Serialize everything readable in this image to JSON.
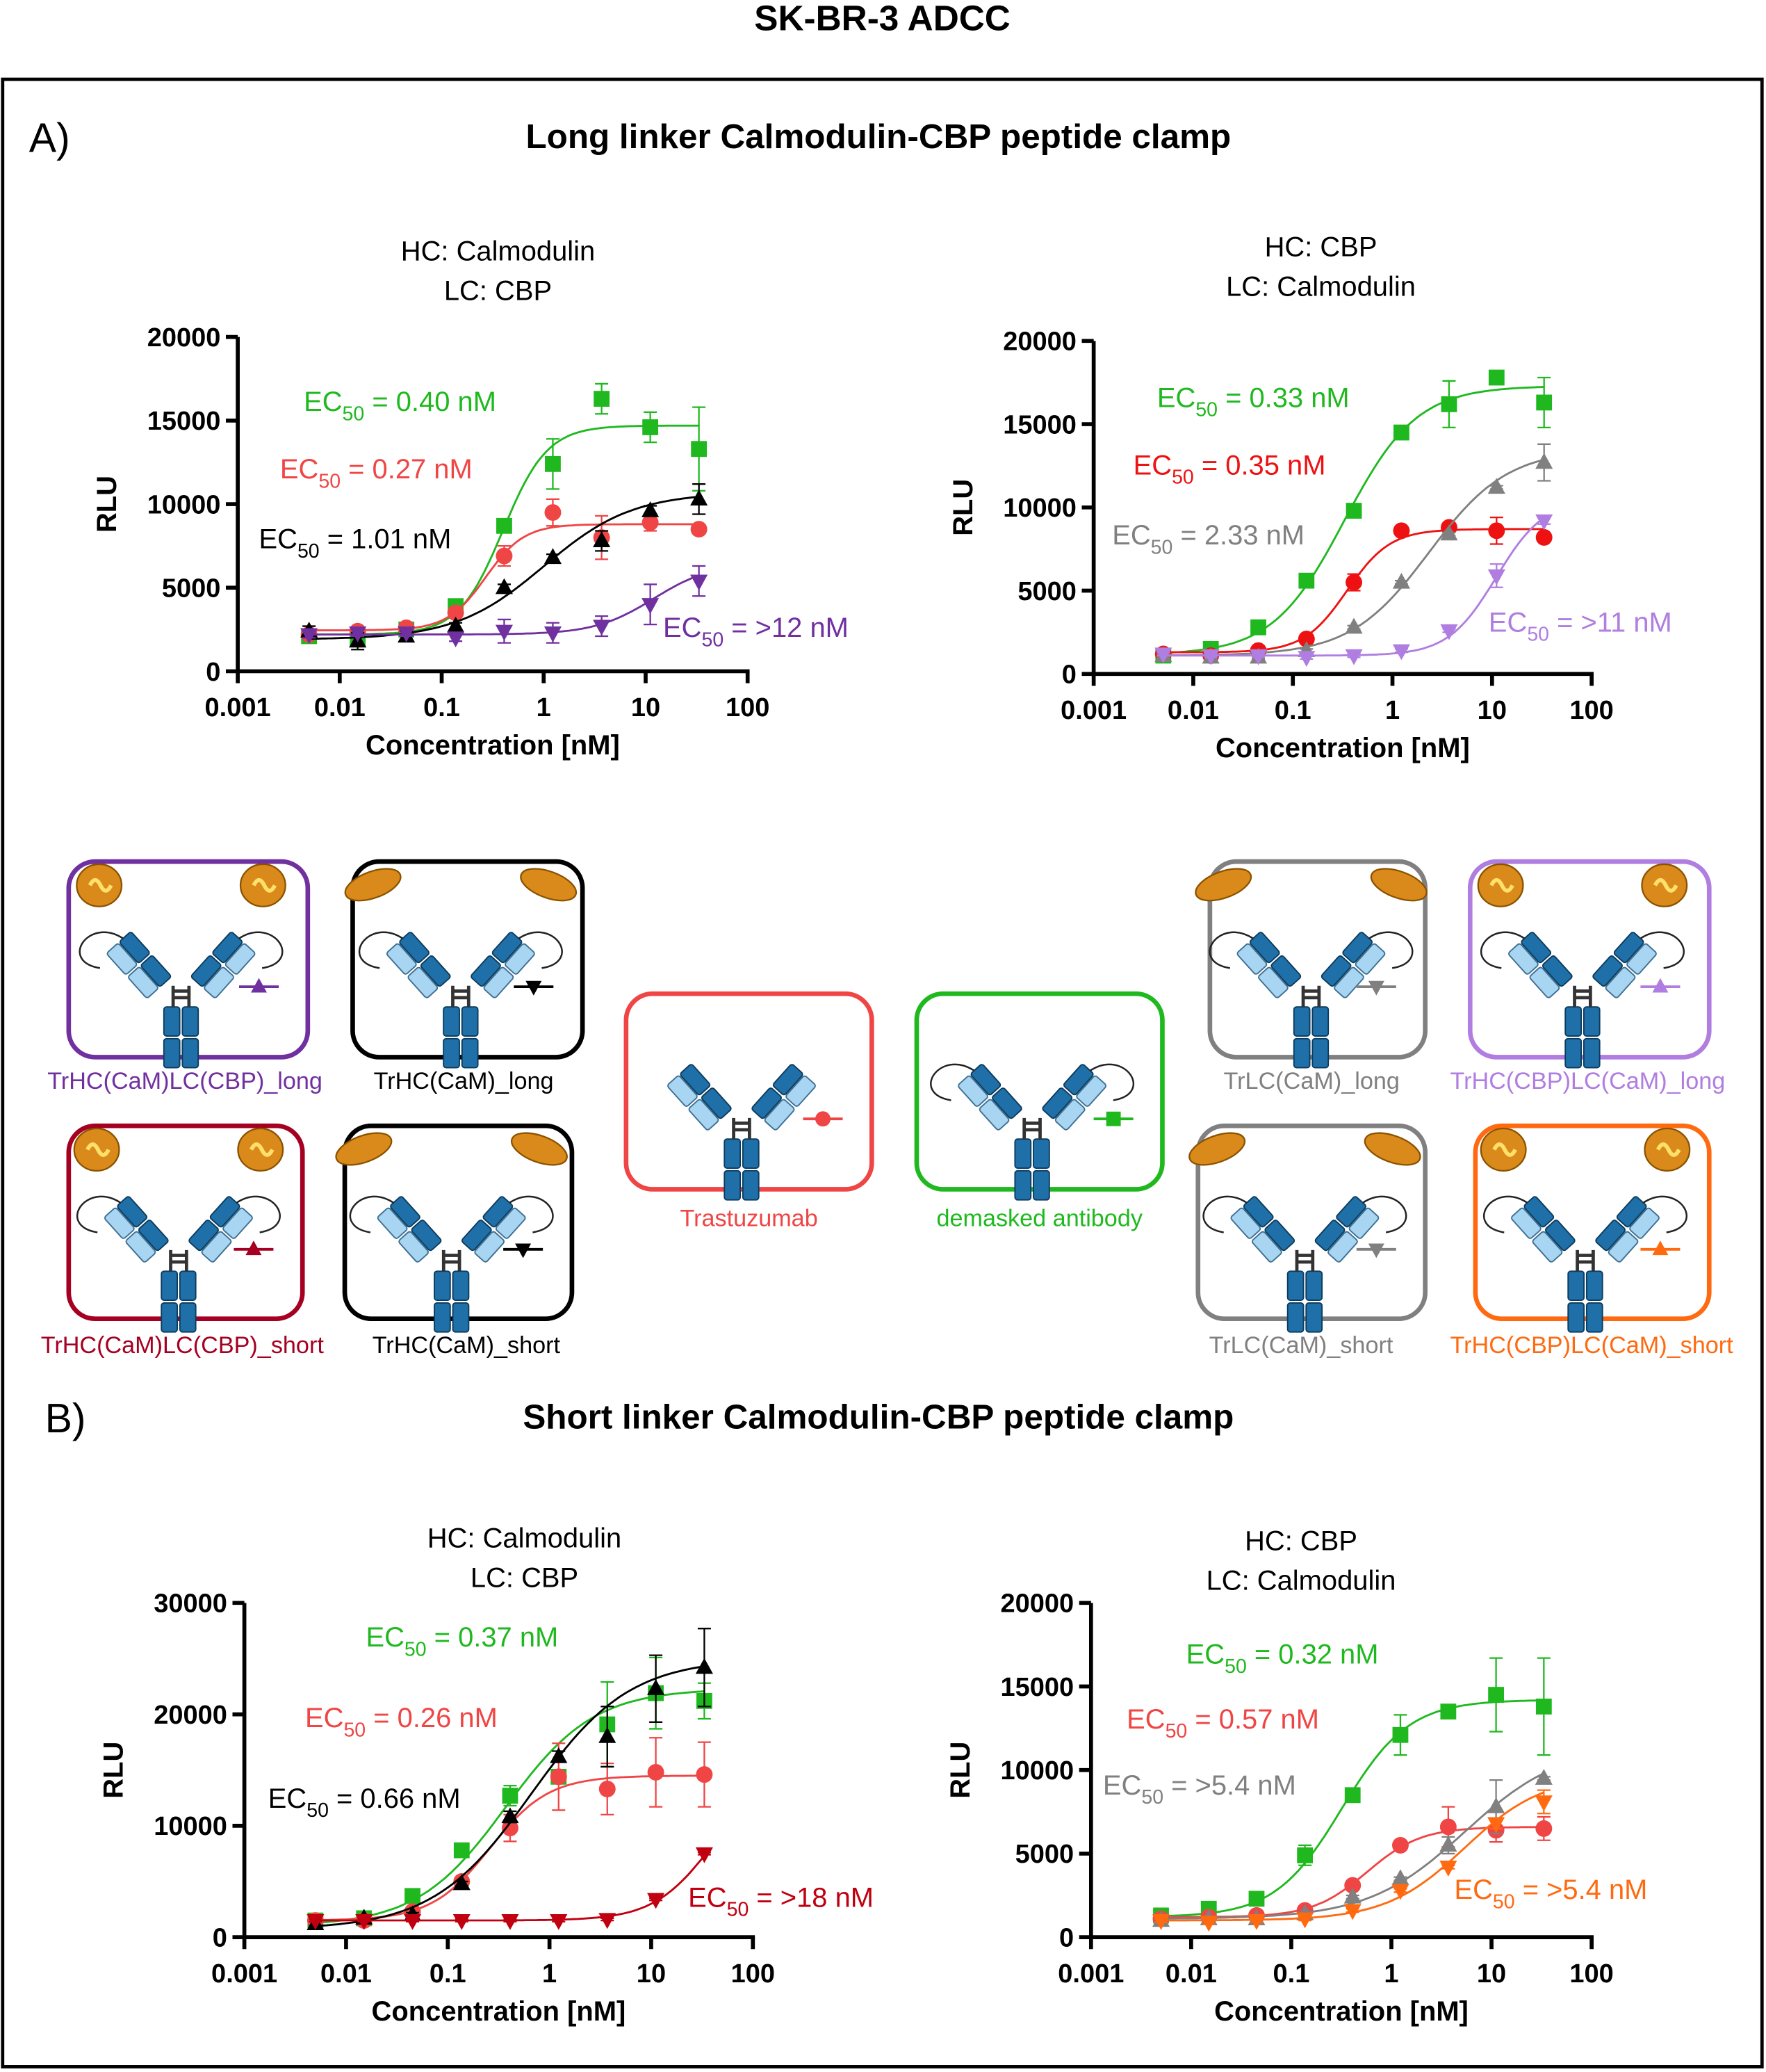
{
  "figure_title": "SK-BR-3 ADCC",
  "panels": {
    "A": {
      "label": "A)",
      "title": "Long linker Calmodulin-CBP peptide clamp"
    },
    "B": {
      "label": "B)",
      "title": "Short linker Calmodulin-CBP peptide clamp"
    }
  },
  "colors": {
    "green": "#1fb91f",
    "red": "#f04545",
    "black": "#000000",
    "purple": "#7030a0",
    "gray": "#808080",
    "lavender": "#b07de0",
    "maroon": "#a50021",
    "orange": "#ff6a10",
    "heavy_chain": "#1f70a8",
    "light_chain": "#a8d5f2",
    "calmodulin": "#d98a1a"
  },
  "legend": [
    {
      "label": "TrHC(CaM)LC(CBP)_long",
      "color": "#7030a0",
      "marker": "triangle-up",
      "mod": "ball"
    },
    {
      "label": "TrHC(CaM)_long",
      "color": "#000000",
      "marker": "triangle-down",
      "mod": "bean"
    },
    {
      "label": "TrHC(CaM)LC(CBP)_short",
      "color": "#a50021",
      "marker": "triangle-up",
      "mod": "ball"
    },
    {
      "label": "TrHC(CaM)_short",
      "color": "#000000",
      "marker": "triangle-down",
      "mod": "bean"
    },
    {
      "label": "Trastuzumab",
      "color": "#f04545",
      "marker": "circle",
      "mod": "none"
    },
    {
      "label": "demasked antibody",
      "color": "#1fb91f",
      "marker": "square",
      "mod": "linker"
    },
    {
      "label": "TrLC(CaM)_long",
      "color": "#808080",
      "marker": "triangle-down",
      "mod": "bean"
    },
    {
      "label": "TrHC(CBP)LC(CaM)_long",
      "color": "#b07de0",
      "marker": "triangle-up",
      "mod": "ball"
    },
    {
      "label": "TrLC(CaM)_short",
      "color": "#808080",
      "marker": "triangle-down",
      "mod": "bean"
    },
    {
      "label": "TrHC(CBP)LC(CaM)_short",
      "color": "#ff6a10",
      "marker": "triangle-up",
      "mod": "ball"
    }
  ],
  "chart_data": [
    {
      "type": "line",
      "panel": "A",
      "title_lines": [
        "HC: Calmodulin",
        "LC: CBP"
      ],
      "xlabel": "Concentration [nM]",
      "ylabel": "RLU",
      "xscale": "log",
      "xlim": [
        0.001,
        100
      ],
      "xticks": [
        "0.001",
        "0.01",
        "0.1",
        "1",
        "10",
        "100"
      ],
      "ylim": [
        0,
        20000
      ],
      "yticks": [
        "0",
        "5000",
        "10000",
        "15000",
        "20000"
      ],
      "x": [
        0.005,
        0.015,
        0.045,
        0.137,
        0.41,
        1.23,
        3.7,
        11.1,
        33.3
      ],
      "series": [
        {
          "name": "demasked antibody",
          "color": "#1fb91f",
          "marker": "square",
          "y": [
            2100,
            2000,
            2500,
            3900,
            8700,
            12400,
            16300,
            14600,
            13300
          ],
          "err": [
            200,
            300,
            200,
            200,
            200,
            1500,
            900,
            900,
            2500
          ],
          "fit": {
            "bottom": 2200,
            "top": 14700,
            "ec50": 0.4,
            "hill": 2.0
          },
          "ec50_label": {
            "prefix": "EC",
            "sub": "50",
            "value": " = 0.40 nM"
          }
        },
        {
          "name": "Trastuzumab",
          "color": "#f04545",
          "marker": "circle",
          "y": [
            2200,
            2400,
            2600,
            3500,
            6900,
            9500,
            8000,
            8900,
            8500
          ],
          "err": [
            200,
            200,
            200,
            200,
            600,
            800,
            1300,
            500,
            200
          ],
          "fit": {
            "bottom": 2450,
            "top": 8800,
            "ec50": 0.27,
            "hill": 2.3
          },
          "ec50_label": {
            "prefix": "EC",
            "sub": "50",
            "value": " = 0.27 nM"
          }
        },
        {
          "name": "TrHC(CaM)_long",
          "color": "#000000",
          "marker": "triangle-up",
          "y": [
            2400,
            1800,
            2100,
            2700,
            5000,
            6800,
            7800,
            9600,
            10300
          ],
          "err": [
            300,
            500,
            300,
            200,
            200,
            200,
            600,
            300,
            900
          ],
          "fit": {
            "bottom": 1900,
            "top": 10700,
            "ec50": 1.01,
            "hill": 1.0
          },
          "ec50_label": {
            "prefix": "EC",
            "sub": "50",
            "value": " = 1.01 nM"
          }
        },
        {
          "name": "TrHC(CaM)LC(CBP)_long",
          "color": "#7030a0",
          "marker": "triangle-down",
          "y": [
            2200,
            2300,
            2300,
            2000,
            2400,
            2300,
            2700,
            4000,
            5400
          ],
          "err": [
            200,
            200,
            200,
            200,
            700,
            600,
            600,
            1200,
            900
          ],
          "fit": {
            "bottom": 2200,
            "top": 6500,
            "ec50": 12,
            "hill": 1.5
          },
          "ec50_label": {
            "prefix": "EC",
            "sub": "50",
            "value": " = >12 nM"
          }
        }
      ]
    },
    {
      "type": "line",
      "panel": "A",
      "title_lines": [
        "HC: CBP",
        "LC: Calmodulin"
      ],
      "xlabel": "Concentration [nM]",
      "ylabel": "RLU",
      "xscale": "log",
      "xlim": [
        0.001,
        100
      ],
      "xticks": [
        "0.001",
        "0.01",
        "0.1",
        "1",
        "10",
        "100"
      ],
      "ylim": [
        0,
        20000
      ],
      "yticks": [
        "0",
        "5000",
        "10000",
        "15000",
        "20000"
      ],
      "x": [
        0.005,
        0.015,
        0.045,
        0.137,
        0.41,
        1.23,
        3.7,
        11.1,
        33.3
      ],
      "series": [
        {
          "name": "demasked antibody",
          "color": "#1fb91f",
          "marker": "square",
          "y": [
            1100,
            1500,
            2800,
            5600,
            9800,
            14500,
            16200,
            17800,
            16300
          ],
          "err": [
            100,
            100,
            400,
            200,
            200,
            200,
            1400,
            200,
            1500
          ],
          "fit": {
            "bottom": 1150,
            "top": 17300,
            "ec50": 0.33,
            "hill": 1.2
          },
          "ec50_label": {
            "prefix": "EC",
            "sub": "50",
            "value": " = 0.33 nM"
          }
        },
        {
          "name": "Trastuzumab",
          "color": "#ee1111",
          "marker": "circle",
          "y": [
            1200,
            1100,
            1400,
            2100,
            5500,
            8600,
            8800,
            8600,
            8200
          ],
          "err": [
            100,
            100,
            100,
            100,
            500,
            100,
            100,
            800,
            100
          ],
          "fit": {
            "bottom": 1300,
            "top": 8700,
            "ec50": 0.35,
            "hill": 2.0
          },
          "ec50_label": {
            "prefix": "EC",
            "sub": "50",
            "value": " = 0.35 nM"
          }
        },
        {
          "name": "TrLC(CaM)_long",
          "color": "#808080",
          "marker": "triangle-up",
          "y": [
            1100,
            1000,
            1000,
            1400,
            2800,
            5500,
            8400,
            11200,
            12700
          ],
          "err": [
            100,
            100,
            100,
            100,
            100,
            100,
            100,
            100,
            1100
          ],
          "fit": {
            "bottom": 1100,
            "top": 13500,
            "ec50": 2.33,
            "hill": 1.1
          },
          "ec50_label": {
            "prefix": "EC",
            "sub": "50",
            "value": " = 2.33 nM"
          }
        },
        {
          "name": "TrHC(CBP)LC(CaM)_long",
          "color": "#b07de0",
          "marker": "triangle-down",
          "y": [
            1200,
            1100,
            1100,
            1000,
            1100,
            1400,
            2600,
            5900,
            9200
          ],
          "err": [
            100,
            100,
            100,
            100,
            100,
            100,
            100,
            700,
            200
          ],
          "fit": {
            "bottom": 1100,
            "top": 10500,
            "ec50": 11,
            "hill": 1.8
          },
          "ec50_label": {
            "prefix": "EC",
            "sub": "50",
            "value": " = >11 nM"
          }
        }
      ]
    },
    {
      "type": "line",
      "panel": "B",
      "title_lines": [
        "HC: Calmodulin",
        "LC: CBP"
      ],
      "xlabel": "Concentration [nM]",
      "ylabel": "RLU",
      "xscale": "log",
      "xlim": [
        0.001,
        100
      ],
      "xticks": [
        "0.001",
        "0.01",
        "0.1",
        "1",
        "10",
        "100"
      ],
      "ylim": [
        0,
        30000
      ],
      "yticks": [
        "0",
        "10000",
        "20000",
        "30000"
      ],
      "x": [
        0.005,
        0.015,
        0.045,
        0.137,
        0.41,
        1.23,
        3.7,
        11.1,
        33.3
      ],
      "series": [
        {
          "name": "demasked antibody",
          "color": "#1fb91f",
          "marker": "square",
          "y": [
            1500,
            1700,
            3700,
            7800,
            12700,
            14400,
            19100,
            21900,
            21200
          ],
          "err": [
            200,
            200,
            200,
            200,
            900,
            600,
            3800,
            3200,
            1600
          ],
          "fit": {
            "bottom": 1000,
            "top": 22300,
            "ec50": 0.37,
            "hill": 1.0
          },
          "ec50_label": {
            "prefix": "EC",
            "sub": "50",
            "value": " = 0.37 nM"
          }
        },
        {
          "name": "Trastuzumab",
          "color": "#f04545",
          "marker": "circle",
          "y": [
            1500,
            1500,
            2300,
            5000,
            9800,
            14400,
            13300,
            14800,
            14600
          ],
          "err": [
            200,
            200,
            200,
            300,
            1200,
            3000,
            2300,
            3100,
            2900
          ],
          "fit": {
            "bottom": 1500,
            "top": 14500,
            "ec50": 0.26,
            "hill": 1.5
          },
          "ec50_label": {
            "prefix": "EC",
            "sub": "50",
            "value": " = 0.26 nM"
          }
        },
        {
          "name": "TrHC(CaM)_short",
          "color": "#000000",
          "marker": "triangle-up",
          "y": [
            1200,
            1700,
            2000,
            4800,
            10800,
            16200,
            18000,
            22300,
            24200
          ],
          "err": [
            200,
            200,
            200,
            200,
            500,
            500,
            2700,
            3000,
            3500
          ],
          "fit": {
            "bottom": 700,
            "top": 25000,
            "ec50": 0.66,
            "hill": 0.9
          },
          "ec50_label": {
            "prefix": "EC",
            "sub": "50",
            "value": " = 0.66 nM"
          }
        },
        {
          "name": "TrHC(CaM)LC(CBP)_short",
          "color": "#c00010",
          "marker": "triangle-down",
          "y": [
            1500,
            1500,
            1500,
            1500,
            1500,
            1500,
            1600,
            3400,
            7500
          ],
          "err": [
            100,
            100,
            100,
            100,
            100,
            100,
            100,
            100,
            100
          ],
          "fit": {
            "bottom": 1500,
            "top": 15000,
            "ec50": 40,
            "hill": 1.5
          },
          "ec50_label": {
            "prefix": "EC",
            "sub": "50",
            "value": " = >18 nM"
          }
        }
      ]
    },
    {
      "type": "line",
      "panel": "B",
      "title_lines": [
        "HC: CBP",
        "LC: Calmodulin"
      ],
      "xlabel": "Concentration [nM]",
      "ylabel": "RLU",
      "xscale": "log",
      "xlim": [
        0.001,
        100
      ],
      "xticks": [
        "0.001",
        "0.01",
        "0.1",
        "1",
        "10",
        "100"
      ],
      "ylim": [
        0,
        20000
      ],
      "yticks": [
        "0",
        "5000",
        "10000",
        "15000",
        "20000"
      ],
      "x": [
        0.005,
        0.015,
        0.045,
        0.137,
        0.41,
        1.23,
        3.7,
        11.1,
        33.3
      ],
      "series": [
        {
          "name": "demasked antibody",
          "color": "#1fb91f",
          "marker": "square",
          "y": [
            1300,
            1700,
            2300,
            4900,
            8500,
            12100,
            13500,
            14500,
            13800
          ],
          "err": [
            100,
            100,
            100,
            600,
            400,
            1200,
            200,
            2200,
            2900
          ],
          "fit": {
            "bottom": 1200,
            "top": 14200,
            "ec50": 0.32,
            "hill": 1.3
          },
          "ec50_label": {
            "prefix": "EC",
            "sub": "50",
            "value": " = 0.32 nM"
          }
        },
        {
          "name": "Trastuzumab",
          "color": "#f04545",
          "marker": "circle",
          "y": [
            1100,
            1200,
            1300,
            1600,
            3100,
            5500,
            6600,
            6400,
            6500
          ],
          "err": [
            100,
            100,
            100,
            100,
            100,
            100,
            1200,
            700,
            700
          ],
          "fit": {
            "bottom": 1200,
            "top": 6600,
            "ec50": 0.57,
            "hill": 1.6
          },
          "ec50_label": {
            "prefix": "EC",
            "sub": "50",
            "value": " = 0.57 nM"
          }
        },
        {
          "name": "TrLC(CaM)_short",
          "color": "#808080",
          "marker": "triangle-up",
          "y": [
            1000,
            1100,
            1100,
            1400,
            2400,
            3500,
            5500,
            7800,
            9500
          ],
          "err": [
            100,
            100,
            100,
            100,
            100,
            100,
            500,
            1600,
            100
          ],
          "fit": {
            "bottom": 1100,
            "top": 11500,
            "ec50": 5.4,
            "hill": 0.9
          },
          "ec50_label": {
            "prefix": "EC",
            "sub": "50",
            "value": " = >5.4 nM"
          }
        },
        {
          "name": "TrHC(CBP)LC(CaM)_short",
          "color": "#ff6a10",
          "marker": "triangle-down",
          "y": [
            1000,
            900,
            1000,
            1100,
            1600,
            2800,
            4200,
            6800,
            8100
          ],
          "err": [
            100,
            100,
            100,
            100,
            100,
            100,
            100,
            300,
            700
          ],
          "fit": {
            "bottom": 1000,
            "top": 9700,
            "ec50": 5.4,
            "hill": 1.1
          },
          "ec50_label": {
            "prefix": "EC",
            "sub": "50",
            "value": " = >5.4 nM"
          }
        }
      ]
    }
  ]
}
